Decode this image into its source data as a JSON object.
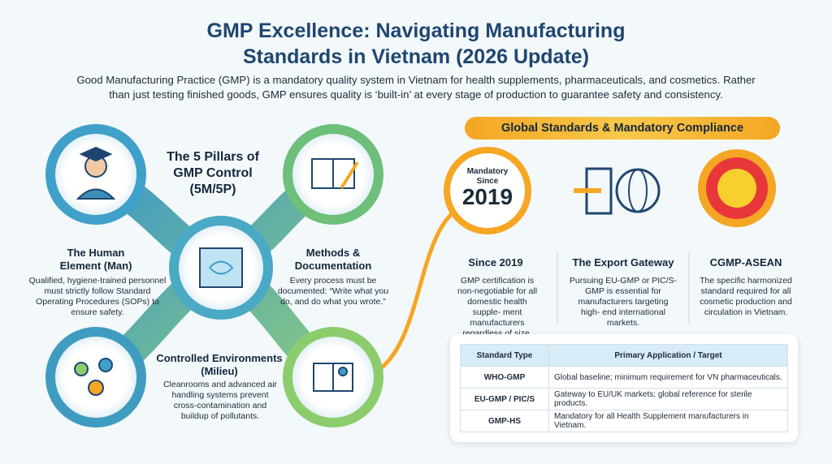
{
  "header": {
    "title_lines": [
      "GMP Excellence: Navigating Manufacturing",
      "Standards in Vietnam (2026 Update)"
    ],
    "intro": "Good Manufacturing Practice (GMP) is a mandatory quality system in Vietnam for health supplements, pharmaceuticals, and cosmetics. Rather than just testing finished goods, GMP ensures quality is ‘built-in’ at every stage of production to guarantee safety and consistency."
  },
  "pillars": {
    "title": "The 5 Pillars of GMP Control (5M/5P)",
    "items": [
      {
        "heading": "The Human Element (Man)",
        "text": "Qualified, hygiene-trained personnel must strictly follow Standard Operating Procedures (SOPs) to ensure safety."
      },
      {
        "heading": "Methods & Documentation",
        "text": "Every process must be documented: “Write what you do, and do what you wrote.”"
      },
      {
        "heading": "Controlled Environments (Milieu)",
        "text": "Cleanrooms and advanced air handling systems prevent cross-contamination and buildup of pollutants."
      }
    ]
  },
  "compliance": {
    "heading": "Global Standards & Mandatory Compliance",
    "badge": [
      "Mandatory",
      "Since",
      "2019"
    ],
    "cards": [
      {
        "heading": "Since 2019",
        "text": "GMP certification is non-negotiable for all domestic health supple- ment manufacturers regardless of size."
      },
      {
        "heading": "The Export Gateway",
        "text": "Pursuing EU-GMP or PIC/S-GMP is essential for manufacturers targeting high- end international markets."
      },
      {
        "heading": "CGMP-ASEAN",
        "text": "The specific harmonized standard required for all cosmetic production and circulation in Vietnam."
      }
    ]
  },
  "table": {
    "header": [
      "Standard Type",
      "Primary Application / Target"
    ],
    "rows": [
      [
        "WHO-GMP",
        "Global baseline; minimum requirement for VN pharmaceuticals."
      ],
      [
        "EU-GMP / PIC/S",
        "Gateway to EU/UK markets; global reference for sterile products."
      ],
      [
        "GMP-HS",
        "Mandatory for all Health Supplement manufacturers in Vietnam."
      ]
    ]
  }
}
